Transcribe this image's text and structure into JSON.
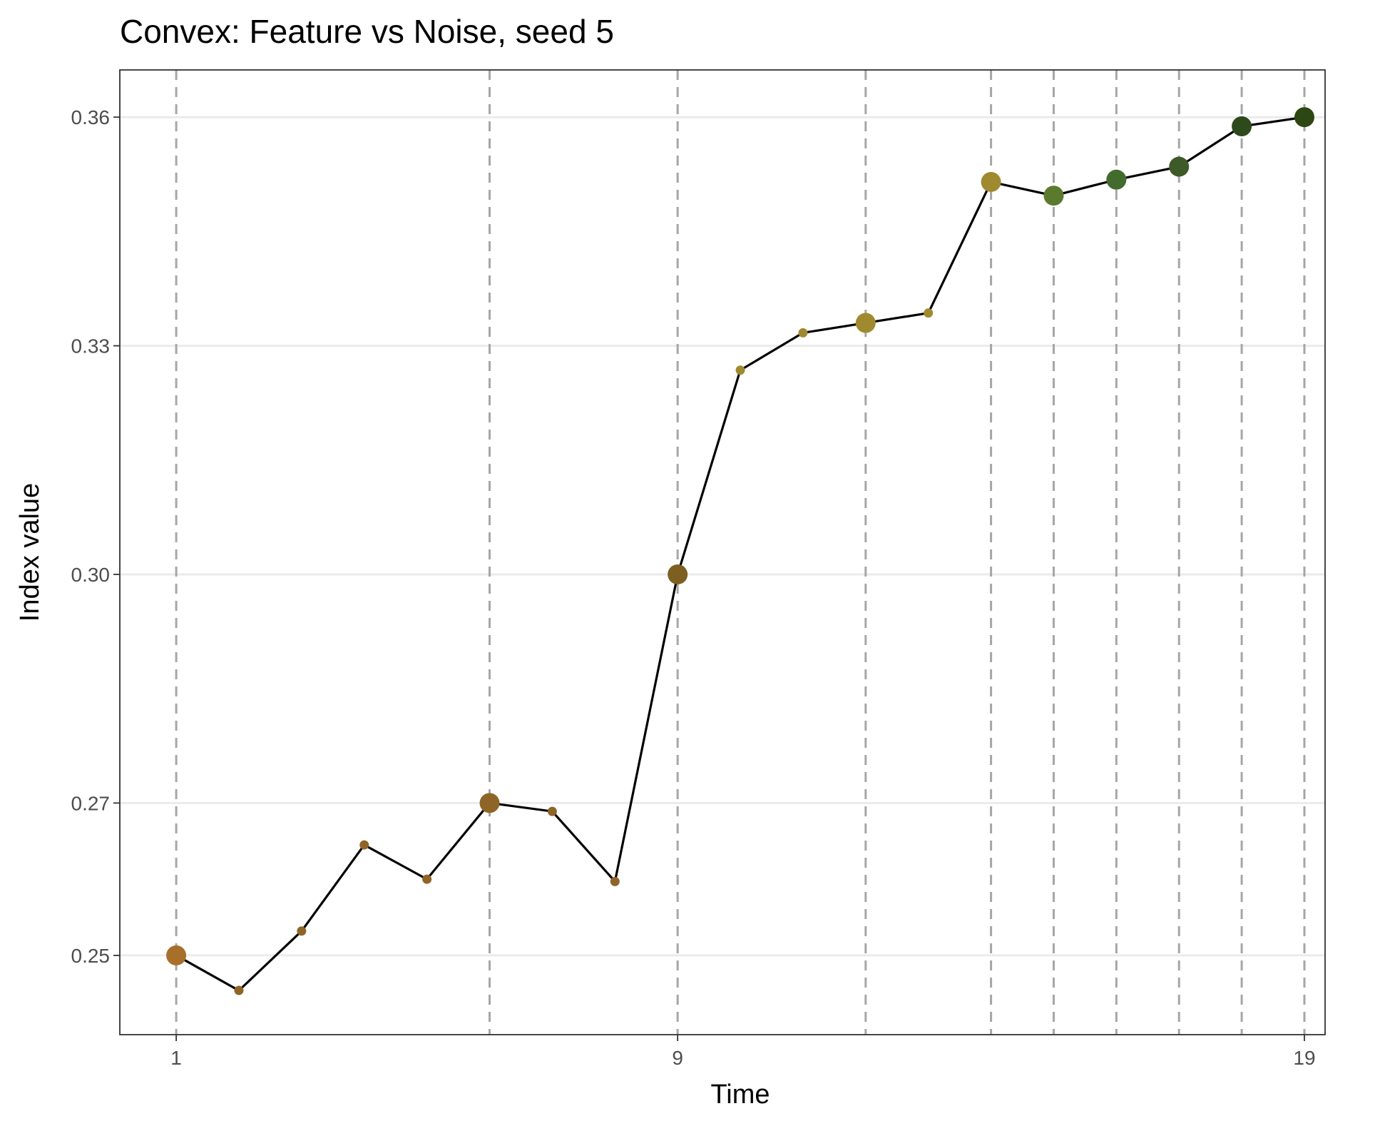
{
  "chart_data": {
    "type": "line",
    "title": "Convex: Feature vs Noise, seed 5",
    "xlabel": "Time",
    "ylabel": "Index value",
    "x_ticks": [
      1,
      9,
      19
    ],
    "y_ticks": [
      "0.25",
      "0.27",
      "0.30",
      "0.33",
      "0.36"
    ],
    "xlim": [
      0.1,
      19.33
    ],
    "ylim": [
      0.2396,
      0.3662
    ],
    "grid": "horizontal major gridlines at y ticks",
    "legend": "none",
    "line_color": "#000000",
    "vline_color": "#a6a6a6",
    "vlines_x": [
      1,
      6,
      9,
      12,
      14,
      15,
      16,
      17,
      18,
      19
    ],
    "points": [
      {
        "x": 1,
        "y": 0.25,
        "highlight": true,
        "color": "#a86f2b"
      },
      {
        "x": 2,
        "y": 0.2454,
        "highlight": false,
        "color": "#8e6527"
      },
      {
        "x": 3,
        "y": 0.2532,
        "highlight": false,
        "color": "#8e6527"
      },
      {
        "x": 4,
        "y": 0.2645,
        "highlight": false,
        "color": "#8e6527"
      },
      {
        "x": 5,
        "y": 0.26,
        "highlight": false,
        "color": "#8e6527"
      },
      {
        "x": 6,
        "y": 0.27,
        "highlight": true,
        "color": "#8e6527"
      },
      {
        "x": 7,
        "y": 0.2689,
        "highlight": false,
        "color": "#8e6527"
      },
      {
        "x": 8,
        "y": 0.2597,
        "highlight": false,
        "color": "#8e6527"
      },
      {
        "x": 9,
        "y": 0.3,
        "highlight": true,
        "color": "#7d5f22"
      },
      {
        "x": 10,
        "y": 0.3268,
        "highlight": false,
        "color": "#a08a2f"
      },
      {
        "x": 11,
        "y": 0.3317,
        "highlight": false,
        "color": "#a08a2f"
      },
      {
        "x": 12,
        "y": 0.333,
        "highlight": true,
        "color": "#a08a2f"
      },
      {
        "x": 13,
        "y": 0.3343,
        "highlight": false,
        "color": "#a08a2f"
      },
      {
        "x": 14,
        "y": 0.3515,
        "highlight": true,
        "color": "#a08a2f"
      },
      {
        "x": 15,
        "y": 0.3497,
        "highlight": true,
        "color": "#5b7a2e"
      },
      {
        "x": 16,
        "y": 0.3518,
        "highlight": true,
        "color": "#426b2e"
      },
      {
        "x": 17,
        "y": 0.3535,
        "highlight": true,
        "color": "#3d5a28"
      },
      {
        "x": 18,
        "y": 0.3588,
        "highlight": true,
        "color": "#2e4a1c"
      },
      {
        "x": 19,
        "y": 0.36,
        "highlight": true,
        "color": "#2c4712"
      }
    ]
  }
}
